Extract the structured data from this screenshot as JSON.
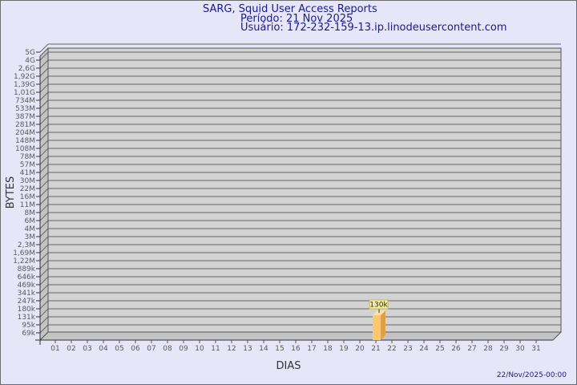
{
  "header": {
    "title": "SARG, Squid User Access Reports",
    "period": "Período: 21 Nov 2025",
    "user": "Usuário: 172-232-159-13.ip.linodeusercontent.com"
  },
  "footer": {
    "timestamp": "22/Nov/2025-00:00"
  },
  "colors": {
    "background": "#e6e6f8",
    "plot": "#d3d3d3",
    "bar_front": "#ffc86e",
    "bar_side": "#e0a048",
    "text": "#1a1a8c"
  },
  "chart_data": {
    "type": "bar",
    "xlabel": "DIAS",
    "ylabel": "BYTES",
    "y_scale": "log",
    "grid": true,
    "y_ticks": [
      "5G",
      "4G",
      "2,6G",
      "1,92G",
      "1,39G",
      "1,01G",
      "734M",
      "533M",
      "387M",
      "281M",
      "204M",
      "148M",
      "108M",
      "78M",
      "57M",
      "41M",
      "30M",
      "22M",
      "16M",
      "11M",
      "8M",
      "6M",
      "4M",
      "3M",
      "2,3M",
      "1,69M",
      "1,22M",
      "889k",
      "646k",
      "469k",
      "341k",
      "247k",
      "180k",
      "131k",
      "95k",
      "69k"
    ],
    "categories": [
      "01",
      "02",
      "03",
      "04",
      "05",
      "06",
      "07",
      "08",
      "09",
      "10",
      "11",
      "12",
      "13",
      "14",
      "15",
      "16",
      "17",
      "18",
      "19",
      "20",
      "21",
      "22",
      "23",
      "24",
      "25",
      "26",
      "27",
      "28",
      "29",
      "30",
      "31"
    ],
    "bars": [
      {
        "day": "21",
        "value": 130000,
        "label": "130k"
      }
    ]
  }
}
